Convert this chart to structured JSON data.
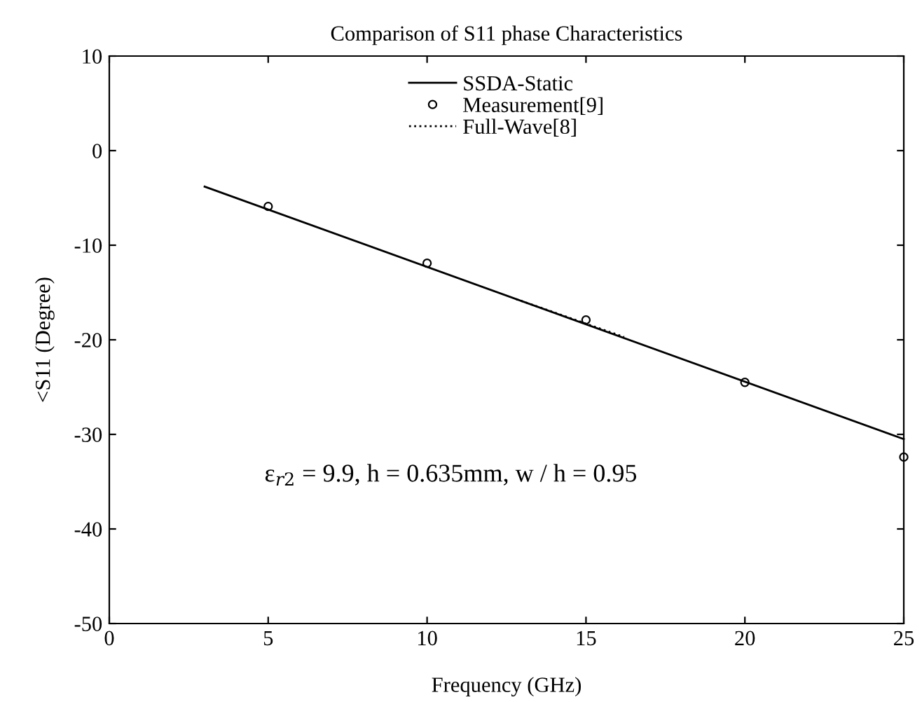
{
  "chart_data": {
    "type": "line",
    "title": "Comparison of S11 phase Characteristics",
    "xlabel": "Frequency (GHz)",
    "ylabel": "<S11 (Degree)",
    "series": [
      {
        "name": "SSDA-Static",
        "color": "#000000",
        "x": [
          3,
          25
        ],
        "values": [
          -3.8,
          -30.5
        ],
        "line_style": "solid",
        "marker": "none"
      },
      {
        "name": "Measurement[9]",
        "color": "#000000",
        "type": "scatter",
        "x": [
          5,
          10,
          15,
          20,
          25
        ],
        "values": [
          -5.9,
          -11.9,
          -17.9,
          -24.5,
          -32.4
        ],
        "marker": "circle"
      },
      {
        "name": "Full-Wave[8]",
        "color": "#000000",
        "type": "line",
        "x": [
          12.8,
          14,
          15,
          16.2
        ],
        "values": [
          -15.7,
          -17.1,
          -18.3,
          -19.7
        ],
        "line_style": "dotted",
        "marker": "none"
      }
    ],
    "xlim": [
      0,
      25
    ],
    "ylim": [
      -50,
      10
    ],
    "xticks": [
      0,
      5,
      10,
      15,
      20,
      25
    ],
    "yticks": [
      -50,
      -40,
      -30,
      -20,
      -10,
      0,
      10
    ],
    "grid": false,
    "legend": "top",
    "annotations": [
      "ε$_{r2}$ = 9.9, h = 0.635mm, w / h = 0.95"
    ]
  }
}
